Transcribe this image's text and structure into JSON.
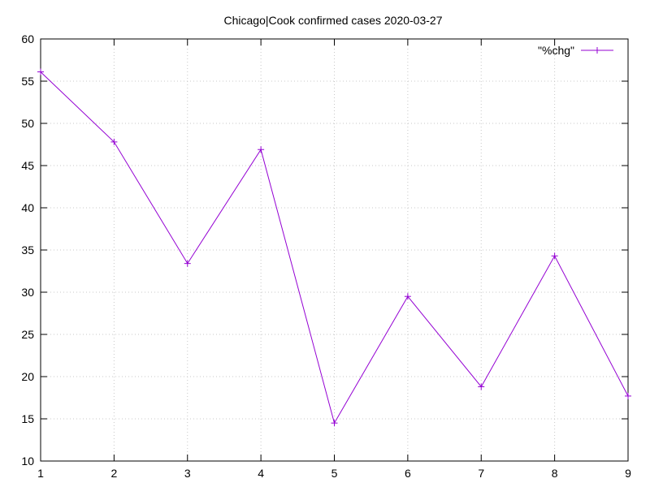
{
  "chart_data": {
    "type": "line",
    "title": "Chicago|Cook confirmed cases 2020-03-27",
    "xlabel": "",
    "ylabel": "",
    "xlim": [
      1,
      9
    ],
    "ylim": [
      10,
      60
    ],
    "xticks": [
      1,
      2,
      3,
      4,
      5,
      6,
      7,
      8,
      9
    ],
    "yticks": [
      10,
      15,
      20,
      25,
      30,
      35,
      40,
      45,
      50,
      55,
      60
    ],
    "grid": true,
    "legend_position": "top-right",
    "series": [
      {
        "name": "\"%chg\"",
        "color": "#9400d3",
        "marker": "plus",
        "x": [
          1,
          2,
          3,
          4,
          5,
          6,
          7,
          8,
          9
        ],
        "values": [
          56.1,
          47.8,
          33.4,
          46.9,
          14.5,
          29.5,
          18.8,
          34.3,
          17.7
        ]
      }
    ]
  }
}
